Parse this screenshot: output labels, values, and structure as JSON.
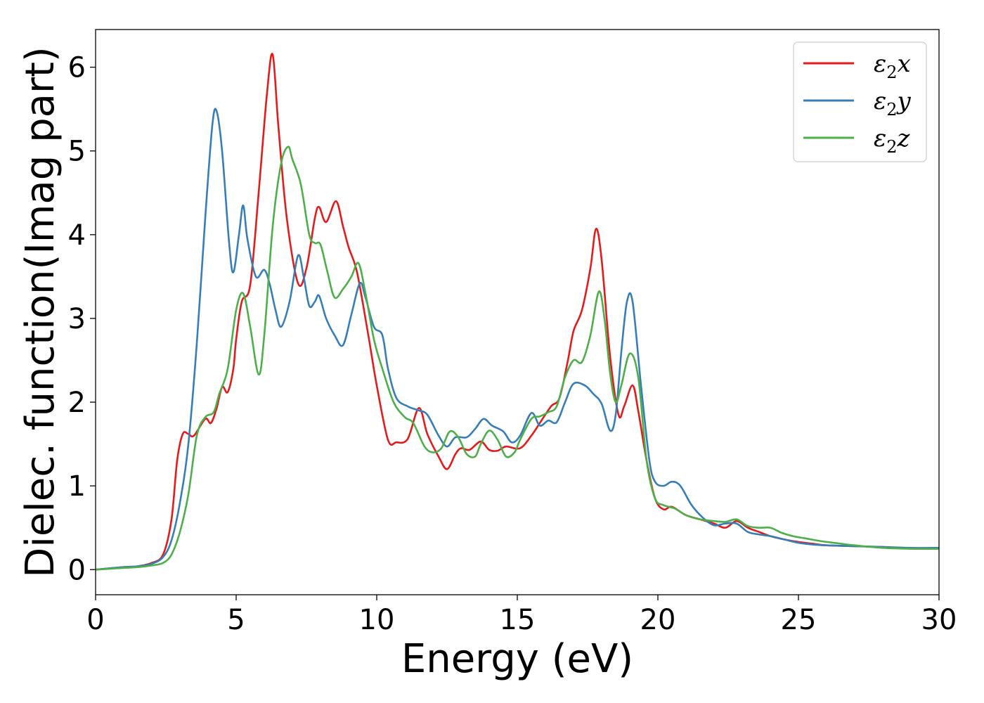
{
  "chart_data": {
    "type": "line",
    "xlabel": "Energy (eV)",
    "ylabel": "Dielec. function(Imag part)",
    "xlim": [
      0,
      30
    ],
    "ylim": [
      -0.3,
      6.45
    ],
    "xticks": [
      0,
      5,
      10,
      15,
      20,
      25,
      30
    ],
    "yticks": [
      0,
      1,
      2,
      3,
      4,
      5,
      6
    ],
    "grid": false,
    "legend_position": "top-right",
    "series": [
      {
        "name": "ε₂x",
        "legend_base": "ε",
        "legend_sub": "2",
        "legend_suffix": "x",
        "color": "#e41a1c",
        "points": [
          [
            0,
            0
          ],
          [
            1,
            0.03
          ],
          [
            1.5,
            0.04
          ],
          [
            2,
            0.08
          ],
          [
            2.4,
            0.18
          ],
          [
            2.7,
            0.6
          ],
          [
            2.9,
            1.3
          ],
          [
            3.1,
            1.62
          ],
          [
            3.3,
            1.62
          ],
          [
            3.5,
            1.6
          ],
          [
            3.9,
            1.8
          ],
          [
            4.1,
            1.75
          ],
          [
            4.3,
            1.92
          ],
          [
            4.5,
            2.18
          ],
          [
            4.7,
            2.12
          ],
          [
            4.9,
            2.4
          ],
          [
            5.0,
            2.75
          ],
          [
            5.2,
            3.2
          ],
          [
            5.5,
            3.4
          ],
          [
            5.8,
            4.5
          ],
          [
            6.1,
            5.7
          ],
          [
            6.3,
            6.15
          ],
          [
            6.5,
            5.3
          ],
          [
            6.8,
            4.2
          ],
          [
            7.2,
            3.42
          ],
          [
            7.5,
            3.6
          ],
          [
            7.8,
            4.2
          ],
          [
            7.95,
            4.33
          ],
          [
            8.2,
            4.15
          ],
          [
            8.55,
            4.4
          ],
          [
            8.8,
            4.1
          ],
          [
            9.0,
            3.85
          ],
          [
            9.3,
            3.55
          ],
          [
            9.7,
            2.8
          ],
          [
            10.0,
            2.2
          ],
          [
            10.4,
            1.55
          ],
          [
            10.7,
            1.52
          ],
          [
            11.1,
            1.56
          ],
          [
            11.5,
            1.93
          ],
          [
            11.8,
            1.62
          ],
          [
            12.2,
            1.35
          ],
          [
            12.5,
            1.2
          ],
          [
            12.8,
            1.38
          ],
          [
            13.0,
            1.45
          ],
          [
            13.3,
            1.43
          ],
          [
            13.7,
            1.53
          ],
          [
            14.0,
            1.43
          ],
          [
            14.3,
            1.42
          ],
          [
            14.6,
            1.47
          ],
          [
            15.1,
            1.45
          ],
          [
            15.5,
            1.6
          ],
          [
            15.8,
            1.75
          ],
          [
            16.2,
            1.95
          ],
          [
            16.5,
            2.05
          ],
          [
            16.8,
            2.5
          ],
          [
            17.0,
            2.85
          ],
          [
            17.3,
            3.1
          ],
          [
            17.6,
            3.6
          ],
          [
            17.8,
            4.07
          ],
          [
            18.0,
            3.7
          ],
          [
            18.3,
            2.55
          ],
          [
            18.6,
            1.85
          ],
          [
            18.8,
            1.95
          ],
          [
            19.1,
            2.2
          ],
          [
            19.3,
            1.9
          ],
          [
            19.6,
            1.3
          ],
          [
            19.9,
            0.85
          ],
          [
            20.2,
            0.72
          ],
          [
            20.5,
            0.75
          ],
          [
            21.0,
            0.65
          ],
          [
            21.5,
            0.6
          ],
          [
            22.0,
            0.55
          ],
          [
            22.4,
            0.5
          ],
          [
            22.8,
            0.58
          ],
          [
            23.2,
            0.5
          ],
          [
            23.6,
            0.45
          ],
          [
            24.0,
            0.4
          ],
          [
            24.5,
            0.36
          ],
          [
            25.0,
            0.33
          ],
          [
            25.5,
            0.31
          ],
          [
            26.0,
            0.29
          ],
          [
            27.0,
            0.28
          ],
          [
            28.0,
            0.27
          ],
          [
            29.0,
            0.25
          ],
          [
            30.0,
            0.25
          ]
        ]
      },
      {
        "name": "ε₂y",
        "legend_base": "ε",
        "legend_sub": "2",
        "legend_suffix": "y",
        "color": "#377eb8",
        "points": [
          [
            0,
            0
          ],
          [
            1,
            0.03
          ],
          [
            1.5,
            0.04
          ],
          [
            2,
            0.07
          ],
          [
            2.4,
            0.15
          ],
          [
            2.7,
            0.35
          ],
          [
            3.0,
            0.8
          ],
          [
            3.3,
            1.5
          ],
          [
            3.6,
            2.7
          ],
          [
            3.9,
            4.2
          ],
          [
            4.15,
            5.3
          ],
          [
            4.3,
            5.48
          ],
          [
            4.5,
            5.0
          ],
          [
            4.75,
            3.9
          ],
          [
            4.9,
            3.55
          ],
          [
            5.1,
            4.0
          ],
          [
            5.25,
            4.35
          ],
          [
            5.4,
            3.95
          ],
          [
            5.7,
            3.5
          ],
          [
            6.0,
            3.58
          ],
          [
            6.2,
            3.4
          ],
          [
            6.4,
            3.1
          ],
          [
            6.6,
            2.9
          ],
          [
            6.9,
            3.2
          ],
          [
            7.2,
            3.75
          ],
          [
            7.4,
            3.5
          ],
          [
            7.6,
            3.15
          ],
          [
            7.8,
            3.2
          ],
          [
            7.95,
            3.27
          ],
          [
            8.2,
            3.0
          ],
          [
            8.5,
            2.8
          ],
          [
            8.8,
            2.68
          ],
          [
            9.1,
            3.05
          ],
          [
            9.4,
            3.42
          ],
          [
            9.6,
            3.25
          ],
          [
            9.9,
            2.9
          ],
          [
            10.2,
            2.8
          ],
          [
            10.4,
            2.4
          ],
          [
            10.7,
            2.05
          ],
          [
            11.1,
            1.95
          ],
          [
            11.5,
            1.9
          ],
          [
            11.8,
            1.85
          ],
          [
            12.2,
            1.6
          ],
          [
            12.5,
            1.47
          ],
          [
            12.8,
            1.58
          ],
          [
            13.2,
            1.58
          ],
          [
            13.5,
            1.68
          ],
          [
            13.8,
            1.8
          ],
          [
            14.1,
            1.72
          ],
          [
            14.5,
            1.65
          ],
          [
            14.8,
            1.52
          ],
          [
            15.1,
            1.6
          ],
          [
            15.5,
            1.87
          ],
          [
            15.8,
            1.72
          ],
          [
            16.1,
            1.78
          ],
          [
            16.4,
            1.76
          ],
          [
            16.7,
            2.0
          ],
          [
            17.0,
            2.22
          ],
          [
            17.4,
            2.2
          ],
          [
            17.7,
            2.1
          ],
          [
            18.0,
            1.98
          ],
          [
            18.3,
            1.66
          ],
          [
            18.5,
            1.85
          ],
          [
            18.7,
            2.6
          ],
          [
            18.9,
            3.2
          ],
          [
            19.1,
            3.2
          ],
          [
            19.4,
            2.2
          ],
          [
            19.7,
            1.3
          ],
          [
            19.9,
            1.05
          ],
          [
            20.2,
            1.0
          ],
          [
            20.5,
            1.05
          ],
          [
            20.8,
            1.0
          ],
          [
            21.2,
            0.77
          ],
          [
            21.6,
            0.62
          ],
          [
            22.0,
            0.53
          ],
          [
            22.4,
            0.55
          ],
          [
            22.8,
            0.55
          ],
          [
            23.2,
            0.45
          ],
          [
            23.6,
            0.42
          ],
          [
            24.0,
            0.4
          ],
          [
            24.5,
            0.36
          ],
          [
            25.0,
            0.32
          ],
          [
            25.5,
            0.3
          ],
          [
            26.0,
            0.29
          ],
          [
            27.0,
            0.28
          ],
          [
            28.0,
            0.27
          ],
          [
            29.0,
            0.26
          ],
          [
            30.0,
            0.26
          ]
        ]
      },
      {
        "name": "ε₂z",
        "legend_base": "ε",
        "legend_sub": "2",
        "legend_suffix": "z",
        "color": "#4daf4a",
        "points": [
          [
            0,
            0
          ],
          [
            1,
            0.02
          ],
          [
            1.5,
            0.03
          ],
          [
            2,
            0.05
          ],
          [
            2.4,
            0.08
          ],
          [
            2.7,
            0.18
          ],
          [
            3.0,
            0.45
          ],
          [
            3.3,
            0.9
          ],
          [
            3.6,
            1.6
          ],
          [
            3.9,
            1.82
          ],
          [
            4.2,
            1.88
          ],
          [
            4.4,
            2.1
          ],
          [
            4.7,
            2.4
          ],
          [
            5.0,
            3.1
          ],
          [
            5.25,
            3.3
          ],
          [
            5.5,
            2.9
          ],
          [
            5.8,
            2.33
          ],
          [
            6.0,
            2.8
          ],
          [
            6.3,
            4.1
          ],
          [
            6.6,
            4.85
          ],
          [
            6.85,
            5.05
          ],
          [
            7.0,
            4.9
          ],
          [
            7.3,
            4.6
          ],
          [
            7.6,
            4.0
          ],
          [
            7.8,
            3.9
          ],
          [
            8.0,
            3.88
          ],
          [
            8.25,
            3.55
          ],
          [
            8.5,
            3.25
          ],
          [
            8.8,
            3.35
          ],
          [
            9.1,
            3.5
          ],
          [
            9.35,
            3.66
          ],
          [
            9.6,
            3.3
          ],
          [
            9.9,
            2.75
          ],
          [
            10.2,
            2.4
          ],
          [
            10.6,
            2.0
          ],
          [
            11.0,
            1.82
          ],
          [
            11.3,
            1.75
          ],
          [
            11.7,
            1.47
          ],
          [
            12.0,
            1.4
          ],
          [
            12.3,
            1.45
          ],
          [
            12.6,
            1.65
          ],
          [
            12.9,
            1.58
          ],
          [
            13.2,
            1.38
          ],
          [
            13.5,
            1.35
          ],
          [
            13.7,
            1.5
          ],
          [
            14.0,
            1.66
          ],
          [
            14.3,
            1.55
          ],
          [
            14.6,
            1.35
          ],
          [
            14.9,
            1.4
          ],
          [
            15.1,
            1.55
          ],
          [
            15.5,
            1.8
          ],
          [
            15.8,
            1.83
          ],
          [
            16.1,
            1.88
          ],
          [
            16.4,
            1.95
          ],
          [
            16.7,
            2.3
          ],
          [
            17.0,
            2.5
          ],
          [
            17.3,
            2.48
          ],
          [
            17.6,
            2.8
          ],
          [
            17.9,
            3.32
          ],
          [
            18.1,
            3.0
          ],
          [
            18.3,
            2.35
          ],
          [
            18.5,
            2.0
          ],
          [
            18.7,
            2.2
          ],
          [
            19.0,
            2.58
          ],
          [
            19.3,
            2.3
          ],
          [
            19.6,
            1.3
          ],
          [
            19.9,
            0.85
          ],
          [
            20.2,
            0.77
          ],
          [
            20.6,
            0.73
          ],
          [
            21.0,
            0.65
          ],
          [
            21.5,
            0.6
          ],
          [
            22.0,
            0.58
          ],
          [
            22.4,
            0.57
          ],
          [
            22.8,
            0.6
          ],
          [
            23.2,
            0.52
          ],
          [
            23.6,
            0.5
          ],
          [
            24.0,
            0.5
          ],
          [
            24.4,
            0.44
          ],
          [
            24.8,
            0.4
          ],
          [
            25.3,
            0.37
          ],
          [
            25.8,
            0.34
          ],
          [
            26.5,
            0.31
          ],
          [
            27.0,
            0.29
          ],
          [
            28.0,
            0.26
          ],
          [
            29.0,
            0.25
          ],
          [
            30.0,
            0.25
          ]
        ]
      }
    ]
  }
}
